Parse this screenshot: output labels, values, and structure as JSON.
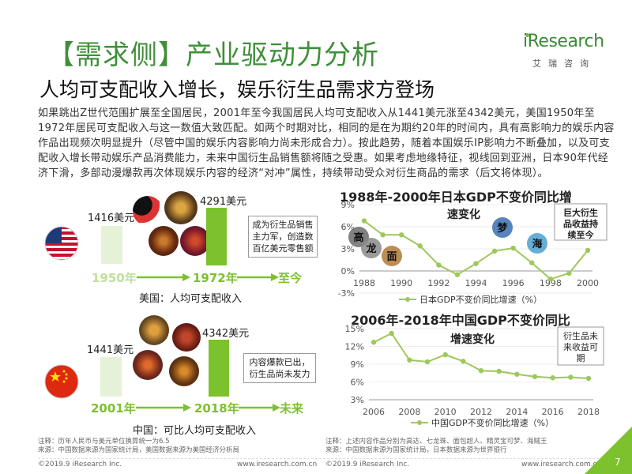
{
  "header": {
    "title": "【需求侧】产业驱动力分析",
    "subtitle": "人均可支配收入增长，娱乐衍生品需求方登场",
    "logo_text": "iResearch",
    "logo_sub": "艾瑞咨询"
  },
  "intro": {
    "paragraph": "如果跳出Z世代范围扩展至全国居民，2001年至今我国居民人均可支配收入从1441美元涨至4342美元，美国1950年至1972年居民可支配收入与这一数值大致匹配。如两个时期对比，相同的是在为期约20年的时间内，具有高影响力的娱乐内容作品出现频次明显提升（尽管中国的娱乐内容影响力尚未形成合力）。按此趋势，随着本国娱乐IP影响力不断叠加，以及可支配收入增长带动娱乐产品消费能力，未来中国衍生品销售额将随之受惠。如果考虑地缘特征，视线回到亚洲，日本90年代经济下滑，多部动漫爆款再次体现娱乐内容的经济“对冲”属性，持续带动受众对衍生商品的需求（后文将体现）。"
  },
  "us_panel": {
    "value_1950": "1416美元",
    "value_1972": "4291美元",
    "year_1950": "1950年",
    "year_1972": "1972年",
    "year_now": "至今",
    "note": "成为衍生品销售主力军，创造数百亿美元零售额",
    "caption": "美国：人均可支配收入",
    "flag_icon": "us-flag-icon"
  },
  "cn_panel": {
    "value_2001": "1441美元",
    "value_2018": "4342美元",
    "year_2001": "2001年",
    "year_2018": "2018年",
    "year_future": "未来",
    "note": "内容爆款已出，衍生品尚未发力",
    "caption": "中国：可比人均可支配收入",
    "flag_icon": "cn-flag-icon"
  },
  "colors": {
    "green": "#7cc12e",
    "dark_green": "#3f8f3a",
    "bar_light": "#e6f2d8",
    "line": "#9dc85a"
  },
  "chart_data": [
    {
      "type": "line",
      "title": "1988年-2000年日本GDP不变价同比增",
      "legend": "日本GDP不变价同比增速（%）",
      "x": [
        1988,
        1989,
        1990,
        1991,
        1992,
        1993,
        1994,
        1995,
        1996,
        1997,
        1998,
        1999,
        2000
      ],
      "y": [
        6.8,
        4.9,
        4.9,
        3.4,
        0.8,
        -0.5,
        1.0,
        2.7,
        3.1,
        1.1,
        -1.1,
        -0.3,
        2.8
      ],
      "x_ticks": [
        "1988",
        "1990",
        "1992",
        "1994",
        "1996",
        "1998",
        "2000"
      ],
      "y_ticks": [
        "9%",
        "6%",
        "3%",
        "0%",
        "-3%"
      ],
      "ylim": [
        -3,
        9
      ],
      "annotations": {
        "growth_label": "速变化",
        "thumb_labels": [
          "高",
          "龙",
          "面",
          "梦",
          "海"
        ],
        "note": "巨大衍生品收益持续至今"
      }
    },
    {
      "type": "line",
      "title": "2006年-2018年中国GDP不变价同比",
      "legend": "中国GDP不变价同比增速（%）",
      "x": [
        2006,
        2007,
        2008,
        2009,
        2010,
        2011,
        2012,
        2013,
        2014,
        2015,
        2016,
        2017,
        2018
      ],
      "y": [
        12.7,
        14.2,
        9.7,
        9.4,
        10.6,
        9.5,
        7.9,
        7.8,
        7.3,
        6.9,
        6.7,
        6.8,
        6.6
      ],
      "x_ticks": [
        "2006",
        "2008",
        "2010",
        "2012",
        "2014",
        "2016",
        "2018"
      ],
      "y_ticks": [
        "15%",
        "12%",
        "9%",
        "6%",
        "3%"
      ],
      "ylim": [
        3,
        15
      ],
      "annotations": {
        "growth_label": "增速变化",
        "note": "衍生品未来收益可期"
      }
    }
  ],
  "footnotes": {
    "left_1": "注释：历年人民币与美元单位换算统一为6.5",
    "left_2": "来源：中国数据来源为国家统计局，美国数据来源为美国经济分析局",
    "right_1": "注释：上述内容作品分别为高达、七龙珠、面包超人、精灵宝可梦、海贼王",
    "right_2": "来源：中国数据来源为国家统计局，日本数据来源为世界银行"
  },
  "footer": {
    "left_copyright": "©2019.9 iResearch Inc.",
    "left_url": "www.iresearch.com.cn",
    "right_copyright": "©2019.9 iResearch Inc.",
    "right_url": "www.iresearch.com.cn",
    "page": "7"
  }
}
